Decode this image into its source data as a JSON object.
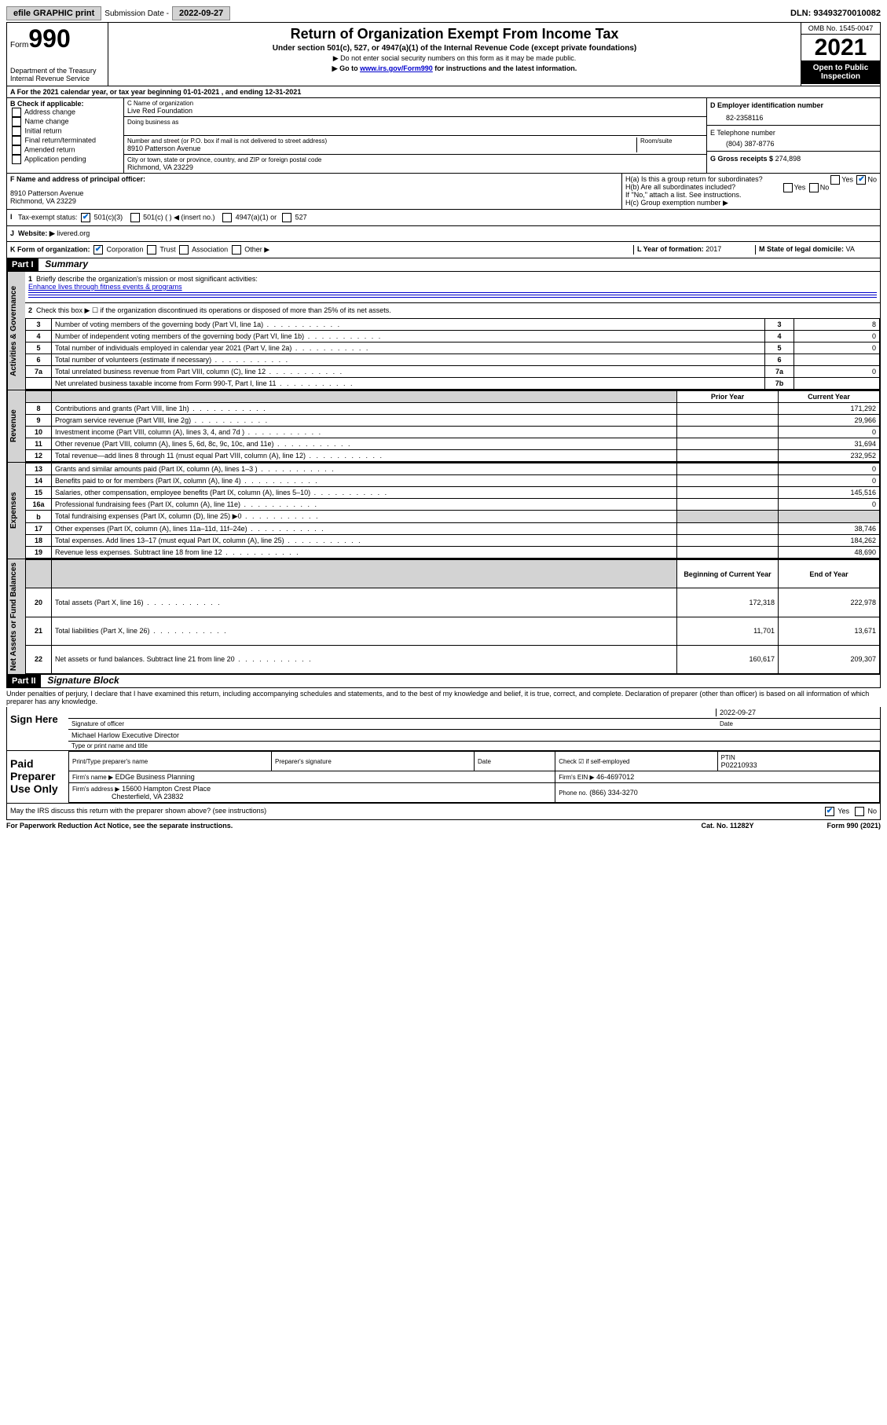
{
  "topbar": {
    "efile": "efile GRAPHIC print",
    "sub_label": "Submission Date - ",
    "sub_date": "2022-09-27",
    "dln": "DLN: 93493270010082"
  },
  "header": {
    "form_word": "Form",
    "form_num": "990",
    "dept": "Department of the Treasury",
    "irs": "Internal Revenue Service",
    "title": "Return of Organization Exempt From Income Tax",
    "subtitle": "Under section 501(c), 527, or 4947(a)(1) of the Internal Revenue Code (except private foundations)",
    "note1": "▶ Do not enter social security numbers on this form as it may be made public.",
    "note2_pre": "▶ Go to ",
    "note2_link": "www.irs.gov/Form990",
    "note2_post": " for instructions and the latest information.",
    "omb": "OMB No. 1545-0047",
    "year": "2021",
    "open": "Open to Public Inspection"
  },
  "row_a": "A For the 2021 calendar year, or tax year beginning 01-01-2021   , and ending 12-31-2021",
  "col_b": {
    "title": "B Check if applicable:",
    "opts": [
      "Address change",
      "Name change",
      "Initial return",
      "Final return/terminated",
      "Amended return",
      "Application pending"
    ]
  },
  "col_c": {
    "name_label": "C Name of organization",
    "name": "Live Red Foundation",
    "dba_label": "Doing business as",
    "addr_label": "Number and street (or P.O. box if mail is not delivered to street address)",
    "room_label": "Room/suite",
    "addr": "8910 Patterson Avenue",
    "city_label": "City or town, state or province, country, and ZIP or foreign postal code",
    "city": "Richmond, VA  23229"
  },
  "col_d": {
    "label": "D Employer identification number",
    "val": "82-2358116"
  },
  "col_e": {
    "label": "E Telephone number",
    "val": "(804) 387-8776"
  },
  "col_g": {
    "label": "G Gross receipts $",
    "val": "274,898"
  },
  "row_f": {
    "label": "F  Name and address of principal officer:",
    "addr1": "8910 Patterson Avenue",
    "addr2": "Richmond, VA  23229"
  },
  "row_h": {
    "ha": "H(a)  Is this a group return for subordinates?",
    "hb": "H(b)  Are all subordinates included?",
    "hb_note": "If \"No,\" attach a list. See instructions.",
    "hc": "H(c)  Group exemption number ▶",
    "yes": "Yes",
    "no": "No"
  },
  "row_i": {
    "label": "Tax-exempt status:",
    "o1": "501(c)(3)",
    "o2": "501(c) (   ) ◀ (insert no.)",
    "o3": "4947(a)(1) or",
    "o4": "527"
  },
  "row_j": {
    "label": "Website: ▶",
    "val": "livered.org"
  },
  "row_k": {
    "label": "K Form of organization:",
    "o1": "Corporation",
    "o2": "Trust",
    "o3": "Association",
    "o4": "Other ▶"
  },
  "row_l": {
    "label": "L Year of formation:",
    "val": "2017"
  },
  "row_m": {
    "label": "M State of legal domicile:",
    "val": "VA"
  },
  "part1": {
    "hdr": "Part I",
    "title": "Summary"
  },
  "summary": {
    "l1_label": "Briefly describe the organization's mission or most significant activities:",
    "l1_val": "Enhance lives through fitness events & programs",
    "l2": "Check this box ▶ ☐  if the organization discontinued its operations or disposed of more than 25% of its net assets.",
    "rows_gov": [
      {
        "n": "3",
        "t": "Number of voting members of the governing body (Part VI, line 1a)",
        "b": "3",
        "v": "8"
      },
      {
        "n": "4",
        "t": "Number of independent voting members of the governing body (Part VI, line 1b)",
        "b": "4",
        "v": "0"
      },
      {
        "n": "5",
        "t": "Total number of individuals employed in calendar year 2021 (Part V, line 2a)",
        "b": "5",
        "v": "0"
      },
      {
        "n": "6",
        "t": "Total number of volunteers (estimate if necessary)",
        "b": "6",
        "v": ""
      },
      {
        "n": "7a",
        "t": "Total unrelated business revenue from Part VIII, column (C), line 12",
        "b": "7a",
        "v": "0"
      },
      {
        "n": "",
        "t": "Net unrelated business taxable income from Form 990-T, Part I, line 11",
        "b": "7b",
        "v": ""
      }
    ],
    "col_prior": "Prior Year",
    "col_curr": "Current Year",
    "rows_rev": [
      {
        "n": "8",
        "t": "Contributions and grants (Part VIII, line 1h)",
        "p": "",
        "c": "171,292"
      },
      {
        "n": "9",
        "t": "Program service revenue (Part VIII, line 2g)",
        "p": "",
        "c": "29,966"
      },
      {
        "n": "10",
        "t": "Investment income (Part VIII, column (A), lines 3, 4, and 7d )",
        "p": "",
        "c": "0"
      },
      {
        "n": "11",
        "t": "Other revenue (Part VIII, column (A), lines 5, 6d, 8c, 9c, 10c, and 11e)",
        "p": "",
        "c": "31,694"
      },
      {
        "n": "12",
        "t": "Total revenue—add lines 8 through 11 (must equal Part VIII, column (A), line 12)",
        "p": "",
        "c": "232,952"
      }
    ],
    "rows_exp": [
      {
        "n": "13",
        "t": "Grants and similar amounts paid (Part IX, column (A), lines 1–3 )",
        "p": "",
        "c": "0"
      },
      {
        "n": "14",
        "t": "Benefits paid to or for members (Part IX, column (A), line 4)",
        "p": "",
        "c": "0"
      },
      {
        "n": "15",
        "t": "Salaries, other compensation, employee benefits (Part IX, column (A), lines 5–10)",
        "p": "",
        "c": "145,516"
      },
      {
        "n": "16a",
        "t": "Professional fundraising fees (Part IX, column (A), line 11e)",
        "p": "",
        "c": "0"
      },
      {
        "n": "b",
        "t": "Total fundraising expenses (Part IX, column (D), line 25) ▶0",
        "p": "shade",
        "c": "shade"
      },
      {
        "n": "17",
        "t": "Other expenses (Part IX, column (A), lines 11a–11d, 11f–24e)",
        "p": "",
        "c": "38,746"
      },
      {
        "n": "18",
        "t": "Total expenses. Add lines 13–17 (must equal Part IX, column (A), line 25)",
        "p": "",
        "c": "184,262"
      },
      {
        "n": "19",
        "t": "Revenue less expenses. Subtract line 18 from line 12",
        "p": "",
        "c": "48,690"
      }
    ],
    "col_beg": "Beginning of Current Year",
    "col_end": "End of Year",
    "rows_net": [
      {
        "n": "20",
        "t": "Total assets (Part X, line 16)",
        "p": "172,318",
        "c": "222,978"
      },
      {
        "n": "21",
        "t": "Total liabilities (Part X, line 26)",
        "p": "11,701",
        "c": "13,671"
      },
      {
        "n": "22",
        "t": "Net assets or fund balances. Subtract line 21 from line 20",
        "p": "160,617",
        "c": "209,307"
      }
    ],
    "tab_gov": "Activities & Governance",
    "tab_rev": "Revenue",
    "tab_exp": "Expenses",
    "tab_net": "Net Assets or Fund Balances"
  },
  "part2": {
    "hdr": "Part II",
    "title": "Signature Block"
  },
  "sig": {
    "decl": "Under penalties of perjury, I declare that I have examined this return, including accompanying schedules and statements, and to the best of my knowledge and belief, it is true, correct, and complete. Declaration of preparer (other than officer) is based on all information of which preparer has any knowledge.",
    "sign_here": "Sign Here",
    "sig_officer": "Signature of officer",
    "sig_date": "2022-09-27",
    "date_lbl": "Date",
    "name_title": "Michael Harlow  Executive Director",
    "type_lbl": "Type or print name and title",
    "paid": "Paid Preparer Use Only",
    "prep_name_lbl": "Print/Type preparer's name",
    "prep_sig_lbl": "Preparer's signature",
    "prep_date_lbl": "Date",
    "check_lbl": "Check ☑ if self-employed",
    "ptin_lbl": "PTIN",
    "ptin": "P02210933",
    "firm_name_lbl": "Firm's name   ▶",
    "firm_name": "EDGe Business Planning",
    "firm_ein_lbl": "Firm's EIN ▶",
    "firm_ein": "46-4697012",
    "firm_addr_lbl": "Firm's address ▶",
    "firm_addr1": "15600 Hampton Crest Place",
    "firm_addr2": "Chesterfield, VA  23832",
    "phone_lbl": "Phone no.",
    "phone": "(866) 334-3270",
    "may_irs": "May the IRS discuss this return with the preparer shown above? (see instructions)"
  },
  "footer": {
    "pra": "For Paperwork Reduction Act Notice, see the separate instructions.",
    "cat": "Cat. No. 11282Y",
    "form": "Form 990 (2021)"
  }
}
